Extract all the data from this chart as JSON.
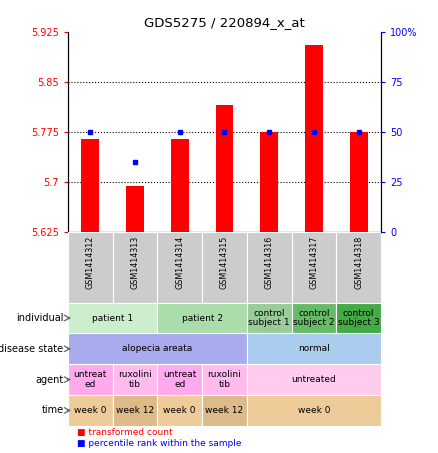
{
  "title": "GDS5275 / 220894_x_at",
  "samples": [
    "GSM1414312",
    "GSM1414313",
    "GSM1414314",
    "GSM1414315",
    "GSM1414316",
    "GSM1414317",
    "GSM1414318"
  ],
  "red_values": [
    5.765,
    5.695,
    5.765,
    5.815,
    5.775,
    5.905,
    5.775
  ],
  "blue_values": [
    5.775,
    5.73,
    5.775,
    5.775,
    5.775,
    5.775,
    5.775
  ],
  "y_min": 5.625,
  "y_max": 5.925,
  "y_ticks": [
    5.625,
    5.7,
    5.775,
    5.85,
    5.925
  ],
  "y_tick_labels": [
    "5.625",
    "5.7",
    "5.775",
    "5.85",
    "5.925"
  ],
  "y2_ticks": [
    0,
    25,
    50,
    75,
    100
  ],
  "y2_tick_labels": [
    "0",
    "25",
    "50",
    "75",
    "100%"
  ],
  "dotted_lines": [
    5.7,
    5.775,
    5.85
  ],
  "individual_row": [
    {
      "label": "patient 1",
      "span": [
        0,
        2
      ],
      "color": "#cceecc"
    },
    {
      "label": "patient 2",
      "span": [
        2,
        4
      ],
      "color": "#aaddaa"
    },
    {
      "label": "control\nsubject 1",
      "span": [
        4,
        5
      ],
      "color": "#99cc99"
    },
    {
      "label": "control\nsubject 2",
      "span": [
        5,
        6
      ],
      "color": "#66bb66"
    },
    {
      "label": "control\nsubject 3",
      "span": [
        6,
        7
      ],
      "color": "#44aa44"
    }
  ],
  "disease_row": [
    {
      "label": "alopecia areata",
      "span": [
        0,
        4
      ],
      "color": "#aaaaee"
    },
    {
      "label": "normal",
      "span": [
        4,
        7
      ],
      "color": "#aaccee"
    }
  ],
  "agent_row": [
    {
      "label": "untreat\ned",
      "span": [
        0,
        1
      ],
      "color": "#ffaaee"
    },
    {
      "label": "ruxolini\ntib",
      "span": [
        1,
        2
      ],
      "color": "#ffbbee"
    },
    {
      "label": "untreat\ned",
      "span": [
        2,
        3
      ],
      "color": "#ffaaee"
    },
    {
      "label": "ruxolini\ntib",
      "span": [
        3,
        4
      ],
      "color": "#ffbbee"
    },
    {
      "label": "untreated",
      "span": [
        4,
        7
      ],
      "color": "#ffccee"
    }
  ],
  "time_row": [
    {
      "label": "week 0",
      "span": [
        0,
        1
      ],
      "color": "#eecc99"
    },
    {
      "label": "week 12",
      "span": [
        1,
        2
      ],
      "color": "#ddbb88"
    },
    {
      "label": "week 0",
      "span": [
        2,
        3
      ],
      "color": "#eecc99"
    },
    {
      "label": "week 12",
      "span": [
        3,
        4
      ],
      "color": "#ddbb88"
    },
    {
      "label": "week 0",
      "span": [
        4,
        7
      ],
      "color": "#eecc99"
    }
  ],
  "legend_red": "transformed count",
  "legend_blue": "percentile rank within the sample",
  "row_labels": [
    "individual",
    "disease state",
    "agent",
    "time"
  ],
  "bar_width": 0.4,
  "sample_bg": "#cccccc"
}
